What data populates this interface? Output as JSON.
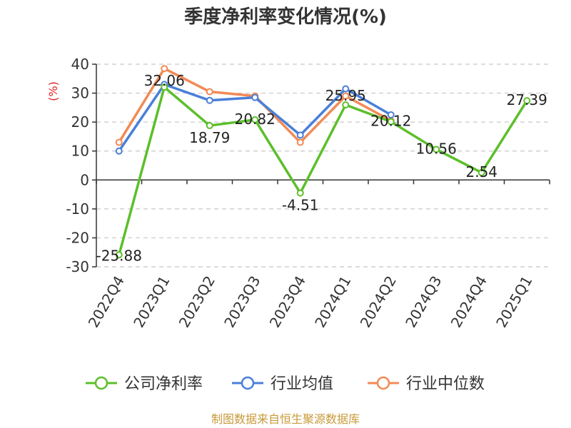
{
  "chart_data": {
    "type": "line",
    "title": "季度净利率变化情况(%)",
    "ylabel": "(%)",
    "xlabel": "",
    "categories": [
      "2022Q4",
      "2023Q1",
      "2023Q2",
      "2023Q3",
      "2023Q4",
      "2024Q1",
      "2024Q2",
      "2024Q3",
      "2024Q4",
      "2025Q1"
    ],
    "ylim": [
      -30,
      40
    ],
    "yticks": [
      40,
      30,
      20,
      10,
      0,
      -10,
      -20,
      -30
    ],
    "grid": true,
    "legend_position": "bottom",
    "series": [
      {
        "name": "公司净利率",
        "color": "#5cbf2a",
        "values": [
          -25.88,
          32.06,
          18.79,
          20.82,
          -4.51,
          25.95,
          20.12,
          10.56,
          2.54,
          27.39
        ],
        "labels": [
          "-25.88",
          "32.06",
          "18.79",
          "20.82",
          "-4.51",
          "25.95",
          "20.12",
          "10.56",
          "2.54",
          "27.39"
        ]
      },
      {
        "name": "行业均值",
        "color": "#4a7fd8",
        "values": [
          10,
          33,
          27.5,
          28.5,
          15.5,
          31.5,
          22.5,
          null,
          null,
          null
        ]
      },
      {
        "name": "行业中位数",
        "color": "#f28a55",
        "values": [
          13,
          38.5,
          30.5,
          29,
          13,
          29,
          20.5,
          null,
          null,
          null
        ]
      }
    ]
  },
  "source_text": "制图数据来自恒生聚源数据库"
}
